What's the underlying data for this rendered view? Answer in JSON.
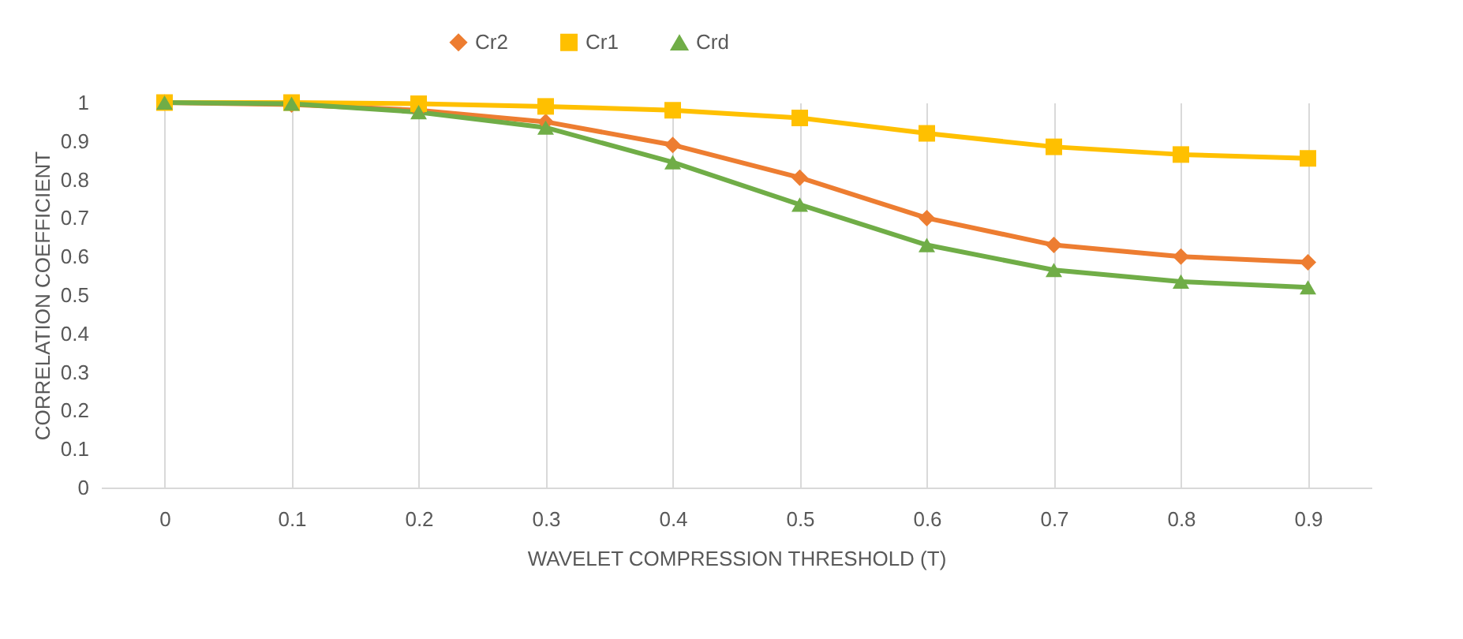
{
  "chart_data": {
    "type": "line",
    "xlabel": "WAVELET COMPRESSION THRESHOLD (T)",
    "ylabel": "CORRELATION COEFFICIENT",
    "categories": [
      "0",
      "0.1",
      "0.2",
      "0.3",
      "0.4",
      "0.5",
      "0.6",
      "0.7",
      "0.8",
      "0.9"
    ],
    "series": [
      {
        "name": "Cr2",
        "color": "#ed7d31",
        "marker": "diamond",
        "values": [
          1,
          0.995,
          0.98,
          0.95,
          0.89,
          0.805,
          0.7,
          0.63,
          0.6,
          0.585
        ]
      },
      {
        "name": "Cr1",
        "color": "#ffc000",
        "marker": "square",
        "values": [
          1,
          1,
          0.997,
          0.99,
          0.98,
          0.96,
          0.92,
          0.885,
          0.865,
          0.855
        ]
      },
      {
        "name": "Crd",
        "color": "#70ad47",
        "marker": "triangle",
        "values": [
          1,
          0.997,
          0.975,
          0.935,
          0.845,
          0.735,
          0.63,
          0.565,
          0.535,
          0.52
        ]
      }
    ],
    "ylim": [
      0,
      1
    ],
    "yticks": [
      0,
      0.1,
      0.2,
      0.3,
      0.4,
      0.5,
      0.6,
      0.7,
      0.8,
      0.9,
      1
    ],
    "grid": "x",
    "legend": "top"
  }
}
